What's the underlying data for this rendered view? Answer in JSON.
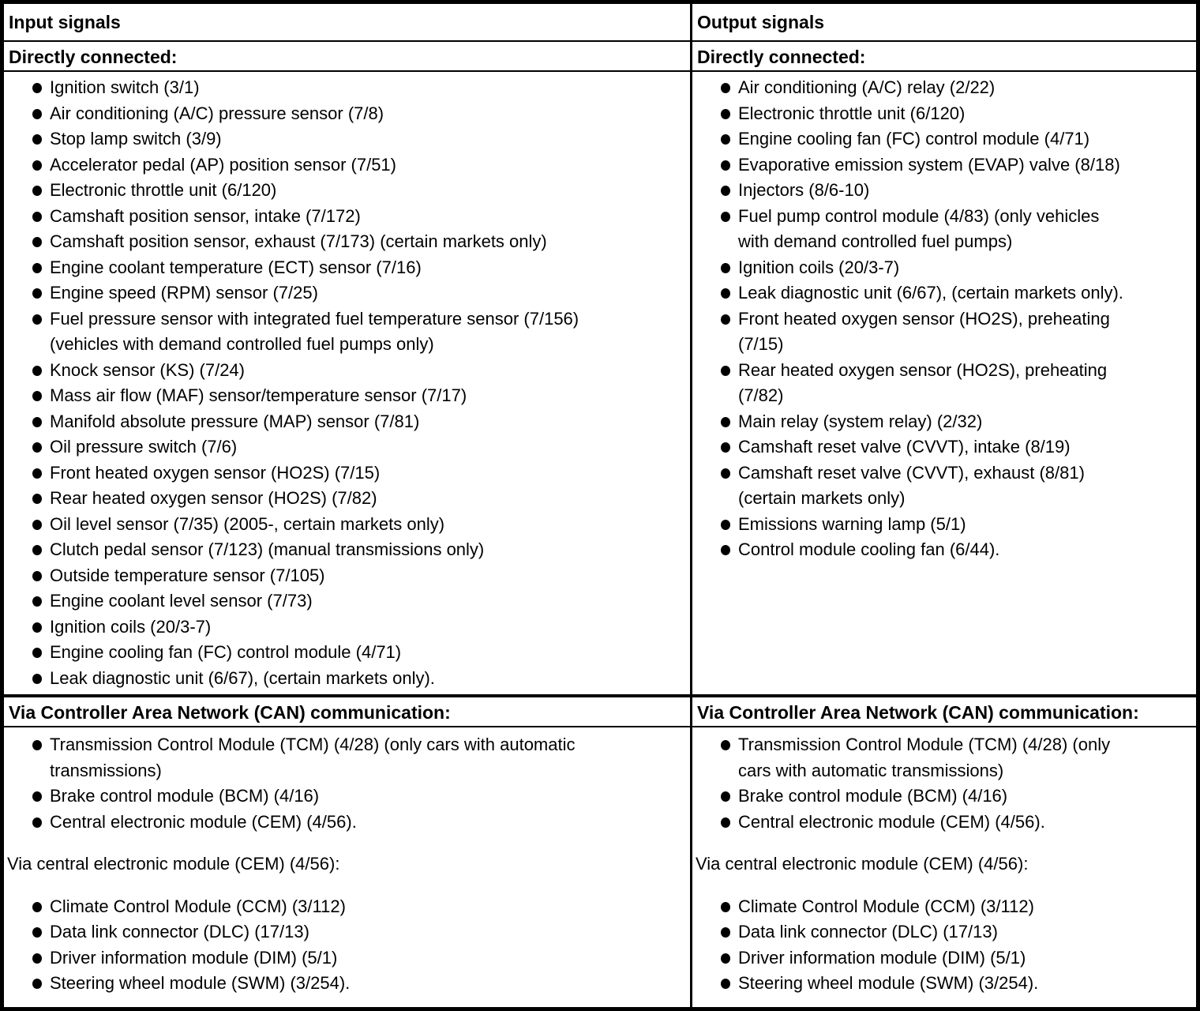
{
  "columns": [
    {
      "header": "Input signals",
      "sections": {
        "directly_connected": {
          "label": "Directly connected:",
          "items": [
            "Ignition switch (3/1)",
            "Air conditioning (A/C) pressure sensor (7/8)",
            "Stop lamp switch (3/9)",
            "Accelerator pedal (AP) position sensor (7/51)",
            "Electronic throttle unit (6/120)",
            "Camshaft position sensor, intake (7/172)",
            "Camshaft position sensor, exhaust (7/173) (certain markets only)",
            "Engine coolant temperature (ECT) sensor (7/16)",
            "Engine speed (RPM) sensor (7/25)",
            "Fuel pressure sensor with integrated fuel temperature sensor (7/156)\n(vehicles with demand controlled fuel pumps only)",
            "Knock sensor (KS) (7/24)",
            "Mass air flow (MAF) sensor/temperature sensor (7/17)",
            "Manifold absolute pressure (MAP) sensor (7/81)",
            "Oil pressure switch (7/6)",
            "Front heated oxygen sensor (HO2S) (7/15)",
            "Rear heated oxygen sensor (HO2S) (7/82)",
            "Oil level sensor (7/35) (2005-, certain markets only)",
            "Clutch pedal sensor (7/123) (manual transmissions only)",
            "Outside temperature sensor (7/105)",
            "Engine coolant level sensor (7/73)",
            "Ignition coils (20/3-7)",
            "Engine cooling fan (FC) control module (4/71)",
            "Leak diagnostic unit (6/67), (certain markets only)."
          ]
        },
        "can": {
          "label": "Via Controller Area Network (CAN) communication:",
          "items": [
            "Transmission Control Module (TCM) (4/28) (only cars with automatic\ntransmissions)",
            "Brake control module (BCM) (4/16)",
            "Central electronic module (CEM) (4/56)."
          ]
        },
        "via_cem": {
          "label": "Via central electronic module (CEM) (4/56):",
          "items": [
            "Climate Control Module (CCM) (3/112)",
            "Data link connector (DLC) (17/13)",
            "Driver information module (DIM) (5/1)",
            "Steering wheel module (SWM) (3/254)."
          ]
        }
      }
    },
    {
      "header": "Output signals",
      "sections": {
        "directly_connected": {
          "label": "Directly connected:",
          "items": [
            "Air conditioning (A/C) relay (2/22)",
            "Electronic throttle unit (6/120)",
            "Engine cooling fan (FC) control module (4/71)",
            "Evaporative emission system (EVAP) valve (8/18)",
            "Injectors (8/6-10)",
            "Fuel pump control module (4/83) (only vehicles\nwith demand controlled fuel pumps)",
            "Ignition coils (20/3-7)",
            "Leak diagnostic unit (6/67), (certain markets only).",
            "Front heated oxygen sensor (HO2S), preheating\n(7/15)",
            "Rear heated oxygen sensor (HO2S), preheating\n(7/82)",
            "Main relay (system relay) (2/32)",
            "Camshaft reset valve (CVVT), intake (8/19)",
            "Camshaft reset valve (CVVT), exhaust (8/81)\n(certain markets only)",
            "Emissions warning lamp (5/1)",
            "Control module cooling fan (6/44)."
          ]
        },
        "can": {
          "label": "Via Controller Area Network (CAN) communication:",
          "items": [
            "Transmission Control Module (TCM) (4/28) (only\ncars with automatic transmissions)",
            "Brake control module (BCM) (4/16)",
            "Central electronic module (CEM) (4/56)."
          ]
        },
        "via_cem": {
          "label": "Via central electronic module (CEM) (4/56):",
          "items": [
            "Climate Control Module (CCM) (3/112)",
            "Data link connector (DLC) (17/13)",
            "Driver information module (DIM) (5/1)",
            "Steering wheel module (SWM) (3/254)."
          ]
        }
      }
    }
  ]
}
